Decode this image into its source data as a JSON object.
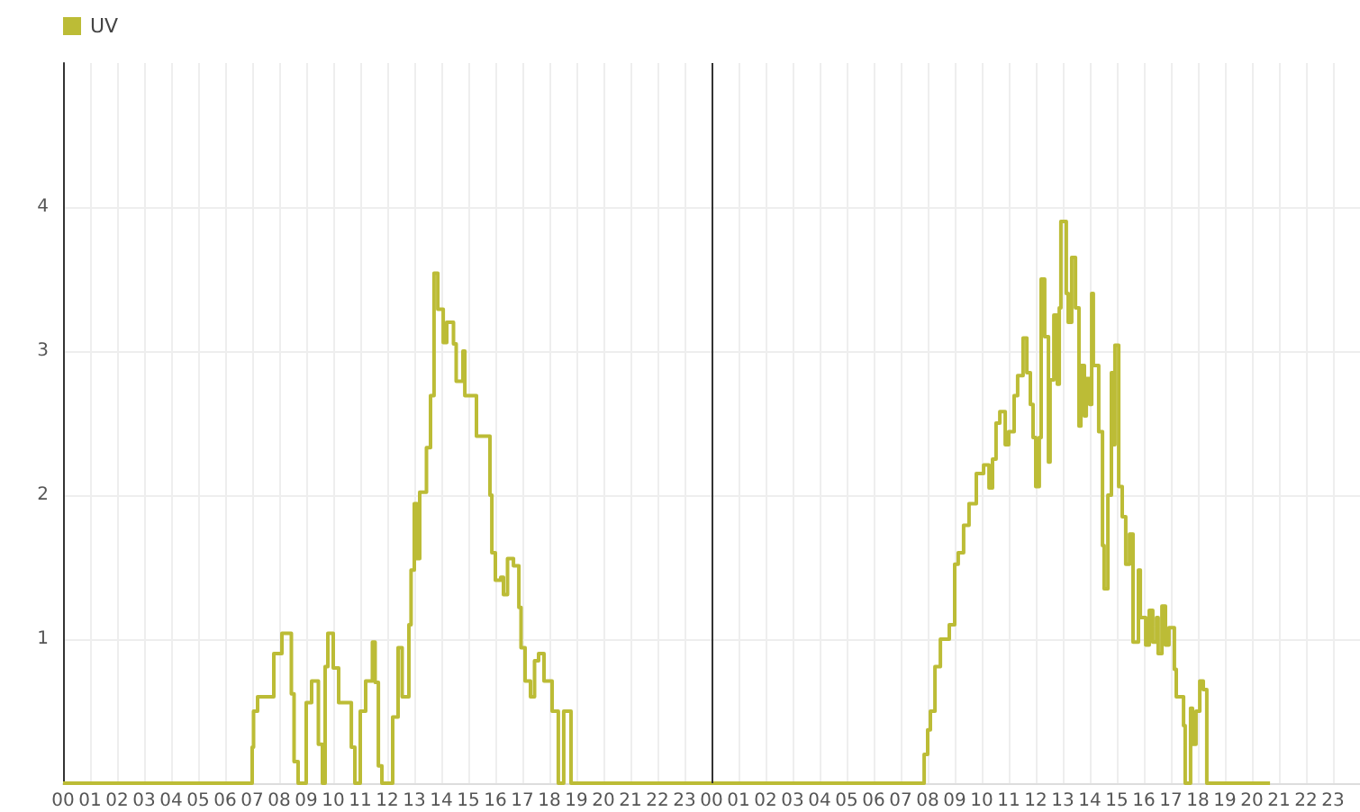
{
  "chart_data": {
    "type": "step",
    "legend": "top left",
    "grid": true,
    "marker": "none",
    "line_style": "solid",
    "xlim": [
      0,
      48
    ],
    "ylim": [
      0,
      5
    ],
    "yticks": [
      1,
      2,
      3,
      4
    ],
    "xticks": [
      {
        "value": 0,
        "label": "00"
      },
      {
        "value": 1,
        "label": "01"
      },
      {
        "value": 2,
        "label": "02"
      },
      {
        "value": 3,
        "label": "03"
      },
      {
        "value": 4,
        "label": "04"
      },
      {
        "value": 5,
        "label": "05"
      },
      {
        "value": 6,
        "label": "06"
      },
      {
        "value": 7,
        "label": "07"
      },
      {
        "value": 8,
        "label": "08"
      },
      {
        "value": 9,
        "label": "09"
      },
      {
        "value": 10,
        "label": "10"
      },
      {
        "value": 11,
        "label": "11"
      },
      {
        "value": 12,
        "label": "12"
      },
      {
        "value": 13,
        "label": "13"
      },
      {
        "value": 14,
        "label": "14"
      },
      {
        "value": 15,
        "label": "15"
      },
      {
        "value": 16,
        "label": "16"
      },
      {
        "value": 17,
        "label": "17"
      },
      {
        "value": 18,
        "label": "18"
      },
      {
        "value": 19,
        "label": "19"
      },
      {
        "value": 20,
        "label": "20"
      },
      {
        "value": 21,
        "label": "21"
      },
      {
        "value": 22,
        "label": "22"
      },
      {
        "value": 23,
        "label": "23"
      },
      {
        "value": 24,
        "label": "00"
      },
      {
        "value": 25,
        "label": "01"
      },
      {
        "value": 26,
        "label": "02"
      },
      {
        "value": 27,
        "label": "03"
      },
      {
        "value": 28,
        "label": "04"
      },
      {
        "value": 29,
        "label": "05"
      },
      {
        "value": 30,
        "label": "06"
      },
      {
        "value": 31,
        "label": "07"
      },
      {
        "value": 32,
        "label": "08"
      },
      {
        "value": 33,
        "label": "09"
      },
      {
        "value": 34,
        "label": "10"
      },
      {
        "value": 35,
        "label": "11"
      },
      {
        "value": 36,
        "label": "12"
      },
      {
        "value": 37,
        "label": "13"
      },
      {
        "value": 38,
        "label": "14"
      },
      {
        "value": 39,
        "label": "15"
      },
      {
        "value": 40,
        "label": "16"
      },
      {
        "value": 41,
        "label": "17"
      },
      {
        "value": 42,
        "label": "18"
      },
      {
        "value": 43,
        "label": "19"
      },
      {
        "value": 44,
        "label": "20"
      },
      {
        "value": 45,
        "label": "21"
      },
      {
        "value": 46,
        "label": "22"
      },
      {
        "value": 47,
        "label": "23"
      }
    ],
    "ref_lines": [
      {
        "axis": "x",
        "value": 24,
        "color": "#333333"
      }
    ],
    "series": [
      {
        "name": "UV",
        "color": "#bcbc36",
        "x": [
          0,
          7.0,
          7.05,
          7.2,
          7.8,
          8.1,
          8.45,
          8.55,
          8.7,
          9.0,
          9.2,
          9.45,
          9.6,
          9.7,
          9.8,
          10.0,
          10.2,
          10.67,
          10.8,
          11.0,
          11.2,
          11.45,
          11.55,
          11.67,
          11.8,
          12.2,
          12.4,
          12.55,
          12.8,
          12.88,
          13.0,
          13.1,
          13.2,
          13.45,
          13.6,
          13.73,
          13.87,
          14.07,
          14.2,
          14.45,
          14.55,
          14.8,
          14.87,
          15.13,
          15.3,
          15.8,
          15.87,
          16.0,
          16.2,
          16.3,
          16.45,
          16.67,
          16.87,
          16.95,
          17.1,
          17.3,
          17.45,
          17.6,
          17.8,
          18.1,
          18.33,
          18.53,
          18.8,
          24.0,
          31.87,
          32.0,
          32.1,
          32.27,
          32.47,
          32.8,
          33.0,
          33.13,
          33.33,
          33.53,
          33.8,
          34.07,
          34.27,
          34.4,
          34.53,
          34.67,
          34.87,
          35.0,
          35.2,
          35.33,
          35.53,
          35.67,
          35.8,
          35.9,
          36.0,
          36.13,
          36.2,
          36.33,
          36.47,
          36.53,
          36.67,
          36.8,
          36.87,
          36.93,
          37.13,
          37.2,
          37.33,
          37.47,
          37.6,
          37.67,
          37.8,
          37.87,
          38.0,
          38.07,
          38.13,
          38.33,
          38.47,
          38.53,
          38.67,
          38.8,
          38.87,
          38.93,
          39.07,
          39.2,
          39.33,
          39.47,
          39.6,
          39.8,
          39.87,
          40.07,
          40.2,
          40.33,
          40.47,
          40.53,
          40.67,
          40.8,
          40.93,
          41.13,
          41.2,
          41.47,
          41.53,
          41.73,
          41.8,
          41.93,
          42.07,
          42.2,
          42.33,
          44.67
        ],
        "values": [
          0,
          0.25,
          0.5,
          0.6,
          0.9,
          1.04,
          0.62,
          0.15,
          0,
          0.56,
          0.71,
          0.27,
          0,
          0.81,
          1.04,
          0.8,
          0.56,
          0.25,
          0,
          0.5,
          0.71,
          0.98,
          0.7,
          0.12,
          0,
          0.46,
          0.94,
          0.6,
          1.1,
          1.48,
          1.94,
          1.56,
          2.02,
          2.33,
          2.69,
          3.54,
          3.29,
          3.06,
          3.2,
          3.05,
          2.79,
          3.0,
          2.69,
          2.69,
          2.41,
          2.0,
          1.6,
          1.41,
          1.43,
          1.31,
          1.56,
          1.51,
          1.22,
          0.94,
          0.71,
          0.6,
          0.85,
          0.9,
          0.71,
          0.5,
          0,
          0.5,
          0,
          0,
          0.2,
          0.37,
          0.5,
          0.81,
          1.0,
          1.1,
          1.52,
          1.6,
          1.79,
          1.94,
          2.15,
          2.21,
          2.05,
          2.25,
          2.5,
          2.58,
          2.35,
          2.44,
          2.69,
          2.83,
          3.09,
          2.85,
          2.63,
          2.4,
          2.06,
          2.4,
          3.5,
          3.1,
          2.23,
          2.8,
          3.25,
          2.77,
          3.3,
          3.9,
          3.4,
          3.2,
          3.65,
          3.3,
          2.48,
          2.9,
          2.55,
          2.81,
          2.63,
          3.4,
          2.9,
          2.44,
          1.65,
          1.35,
          2.0,
          2.85,
          2.35,
          3.04,
          2.06,
          1.85,
          1.52,
          1.73,
          0.98,
          1.48,
          1.15,
          0.96,
          1.2,
          0.98,
          1.15,
          0.9,
          1.23,
          0.96,
          1.08,
          0.79,
          0.6,
          0.4,
          0,
          0.52,
          0.27,
          0.5,
          0.71,
          0.65,
          0,
          0
        ]
      }
    ]
  }
}
